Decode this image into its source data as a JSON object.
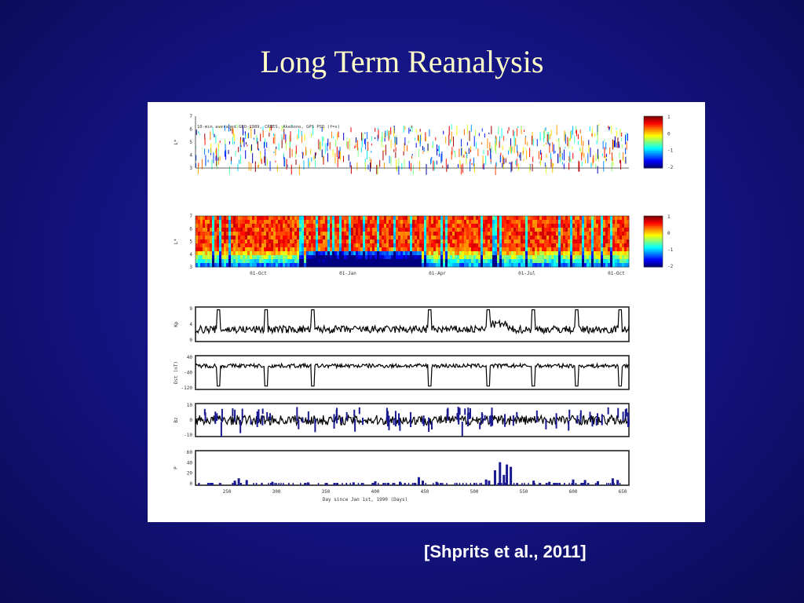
{
  "slide": {
    "title": "Long Term Reanalysis",
    "citation": "[Shprits et al., 2011]"
  },
  "chart_data": [
    {
      "type": "heatmap",
      "title": "10-min averaged GEO-1989, CRRES, Akebono, GPS PSD (f=s)",
      "ylabel": "L*",
      "yticks": [
        "7",
        "6",
        "5",
        "4",
        "3"
      ],
      "colorbar_ticks": [
        "1",
        "0",
        "-1",
        "-2"
      ]
    },
    {
      "type": "heatmap",
      "title": "",
      "ylabel": "L*",
      "yticks": [
        "7",
        "6",
        "5",
        "4",
        "3"
      ],
      "xticks": [
        "01-Oct",
        "01-Jan",
        "01-Apr",
        "01-Jul",
        "01-Oct"
      ],
      "colorbar_ticks": [
        "1",
        "0",
        "-1",
        "-2"
      ]
    },
    {
      "type": "line",
      "ylabel": "Kp",
      "yticks": [
        "9",
        "4",
        "0"
      ],
      "ylim": [
        0,
        9
      ]
    },
    {
      "type": "line",
      "ylabel": "Dst (nT)",
      "yticks": [
        "40",
        "-40",
        "-120"
      ],
      "ylim": [
        -120,
        40
      ]
    },
    {
      "type": "line",
      "ylabel": "Bz",
      "yticks": [
        "10",
        "0",
        "-10"
      ],
      "ylim": [
        -10,
        10
      ]
    },
    {
      "type": "bar",
      "ylabel": "P",
      "yticks": [
        "60",
        "40",
        "20",
        "0"
      ],
      "ylim": [
        0,
        60
      ],
      "xlabel": "Day since Jan 1st, 1990 (Days)",
      "xticks": [
        "250",
        "300",
        "350",
        "400",
        "450",
        "500",
        "550",
        "600",
        "650"
      ],
      "xlim": [
        250,
        650
      ],
      "spikes": [
        {
          "x": 258,
          "value": 8
        },
        {
          "x": 262,
          "value": 12
        },
        {
          "x": 270,
          "value": 9
        },
        {
          "x": 296,
          "value": 6
        },
        {
          "x": 332,
          "value": 5
        },
        {
          "x": 350,
          "value": 4
        },
        {
          "x": 378,
          "value": 5
        },
        {
          "x": 400,
          "value": 7
        },
        {
          "x": 425,
          "value": 6
        },
        {
          "x": 444,
          "value": 14
        },
        {
          "x": 448,
          "value": 8
        },
        {
          "x": 462,
          "value": 6
        },
        {
          "x": 512,
          "value": 10
        },
        {
          "x": 515,
          "value": 8
        },
        {
          "x": 521,
          "value": 26
        },
        {
          "x": 526,
          "value": 40
        },
        {
          "x": 530,
          "value": 18
        },
        {
          "x": 533,
          "value": 36
        },
        {
          "x": 537,
          "value": 32
        },
        {
          "x": 560,
          "value": 8
        },
        {
          "x": 576,
          "value": 6
        },
        {
          "x": 600,
          "value": 10
        },
        {
          "x": 612,
          "value": 9
        },
        {
          "x": 625,
          "value": 7
        },
        {
          "x": 640,
          "value": 12
        },
        {
          "x": 645,
          "value": 9
        }
      ]
    }
  ]
}
